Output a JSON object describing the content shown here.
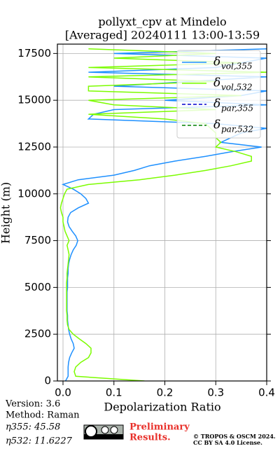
{
  "chart_data": {
    "type": "line",
    "title": "pollyxt_cpv at Mindelo",
    "subtitle": "[Averaged] 20240111 13:00-13:59",
    "x_label": "Depolarization Ratio",
    "y_label": "Height (m)",
    "orientation": "vertical",
    "y": [
      0,
      250,
      500,
      750,
      1000,
      1250,
      1500,
      1750,
      2000,
      2250,
      2500,
      2750,
      3000,
      3250,
      3500,
      3750,
      4000,
      4250,
      4500,
      4750,
      5000,
      5250,
      5500,
      5750,
      6000,
      6250,
      6500,
      6750,
      7000,
      7250,
      7500,
      7750,
      8000,
      8250,
      8500,
      8750,
      9000,
      9250,
      9500,
      9750,
      10000,
      10250,
      10500,
      10750,
      11000,
      11250,
      11500,
      11750,
      12000,
      12250,
      12500,
      12750,
      13000,
      13250,
      13500,
      13750,
      14000,
      14250,
      14500,
      14750,
      15000,
      15250,
      15500,
      15750,
      16000,
      16250,
      16500,
      16750,
      17000,
      17250,
      17500,
      17750
    ],
    "series": [
      {
        "name": "δ",
        "name_sub": "vol,355",
        "color": "#1e90ff",
        "dash": false,
        "values": [
          0.005,
          0.01,
          0.01,
          0.01,
          0.011,
          0.013,
          0.017,
          0.022,
          0.02,
          0.016,
          0.013,
          0.011,
          0.01,
          0.009,
          0.009,
          0.008,
          0.008,
          0.008,
          0.008,
          0.008,
          0.009,
          0.009,
          0.009,
          0.01,
          0.01,
          0.011,
          0.013,
          0.016,
          0.02,
          0.026,
          0.029,
          0.025,
          0.018,
          0.012,
          0.009,
          0.01,
          0.015,
          0.03,
          0.05,
          0.045,
          0.035,
          0.02,
          0.0,
          0.03,
          0.1,
          0.14,
          0.17,
          0.22,
          0.28,
          0.33,
          0.39,
          0.31,
          0.33,
          0.35,
          0.4,
          0.3,
          0.05,
          0.06,
          0.1,
          0.4,
          0.2,
          0.35,
          0.4,
          0.1,
          0.25,
          0.4,
          0.05,
          0.3,
          0.35,
          0.4,
          0.1,
          0.4
        ]
      },
      {
        "name": "δ",
        "name_sub": "vol,532",
        "color": "#7cfc00",
        "dash": false,
        "values": [
          0.16,
          0.025,
          0.022,
          0.025,
          0.035,
          0.05,
          0.055,
          0.055,
          0.045,
          0.032,
          0.02,
          0.012,
          0.009,
          0.008,
          0.008,
          0.007,
          0.007,
          0.007,
          0.007,
          0.007,
          0.007,
          0.007,
          0.008,
          0.008,
          0.009,
          0.01,
          0.011,
          0.012,
          0.01,
          0.008,
          0.012,
          0.008,
          0.004,
          0.002,
          0.0,
          0.0,
          -0.003,
          -0.005,
          -0.003,
          0.0,
          0.003,
          0.008,
          0.05,
          0.15,
          0.22,
          0.28,
          0.33,
          0.37,
          0.37,
          0.34,
          0.3,
          0.31,
          0.3,
          0.3,
          0.29,
          0.28,
          0.2,
          0.05,
          0.3,
          0.1,
          0.05,
          0.35,
          0.05,
          0.05,
          0.3,
          0.05,
          0.4,
          0.05,
          0.35,
          0.1,
          0.3,
          0.05
        ]
      },
      {
        "name": "δ",
        "name_sub": "par,355",
        "color": "#0000cd",
        "dash": true,
        "values": [
          null,
          null,
          null,
          null,
          null,
          null,
          null,
          null,
          null,
          null,
          null,
          null,
          null,
          null,
          null,
          null,
          null,
          null,
          null,
          null,
          null,
          null,
          null,
          null,
          null,
          null,
          null,
          null,
          null,
          null,
          null,
          null,
          null,
          null,
          null,
          null,
          null,
          null,
          null,
          null,
          null,
          null,
          null,
          null,
          null,
          null,
          null,
          null,
          null,
          null,
          null,
          null,
          null,
          null,
          null,
          null,
          null,
          null,
          null,
          null,
          null,
          null,
          null,
          null,
          null,
          null,
          null,
          null,
          null,
          null,
          null,
          null
        ]
      },
      {
        "name": "δ",
        "name_sub": "par,532",
        "color": "#008000",
        "dash": true,
        "values": [
          null,
          null,
          null,
          null,
          null,
          null,
          null,
          null,
          null,
          null,
          null,
          null,
          null,
          null,
          null,
          null,
          null,
          null,
          null,
          null,
          null,
          null,
          null,
          null,
          null,
          null,
          null,
          null,
          null,
          null,
          null,
          null,
          null,
          null,
          null,
          null,
          null,
          null,
          null,
          null,
          null,
          null,
          null,
          null,
          null,
          null,
          null,
          null,
          null,
          null,
          null,
          null,
          null,
          null,
          null,
          null,
          null,
          null,
          null,
          null,
          null,
          null,
          null,
          null,
          null,
          null,
          null,
          null,
          null,
          null,
          null,
          null
        ]
      }
    ],
    "xlim": [
      -0.011,
      0.4
    ],
    "ylim": [
      0,
      18000
    ],
    "xticks": [
      {
        "value": 0,
        "label": "0.0"
      },
      0.1,
      0.2,
      0.3,
      0.4
    ],
    "yticks": [
      0,
      2500,
      5000,
      7500,
      10000,
      12500,
      15000,
      17500
    ],
    "grid": true,
    "legend": "upper right",
    "info": [
      "Version: 3.6",
      "Method: Raman",
      "η355:  45.58",
      "η532: 11.6227"
    ],
    "notice": [
      "Preliminary",
      "Results."
    ],
    "copyright": [
      "© TROPOS & OSCM 2024.",
      "CC BY SA 4.0 License."
    ]
  }
}
